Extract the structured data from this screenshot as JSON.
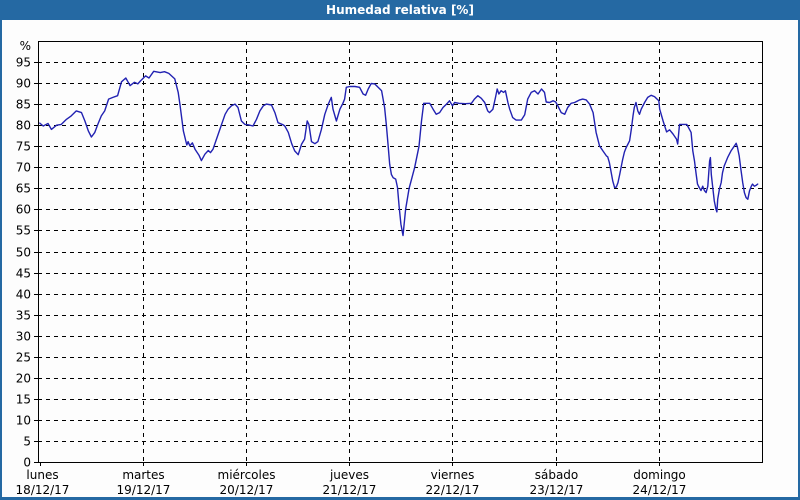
{
  "window": {
    "title": "Humedad relativa [%]"
  },
  "colors": {
    "titlebar_bg": "#2569a3",
    "frame_border": "#2569a3",
    "plot_bg": "#fdfdfd",
    "grid": "#000000",
    "axis": "#000000",
    "line": "#2222b2",
    "title_text": "#ffffff",
    "label_text": "#000000"
  },
  "chart_data": {
    "type": "line",
    "title": "Humedad relativa [%]",
    "ylabel_unit": "%",
    "ylim": [
      0,
      100
    ],
    "ytick_step": 5,
    "ytick_labels": [
      "0",
      "5",
      "10",
      "15",
      "20",
      "25",
      "30",
      "35",
      "40",
      "45",
      "50",
      "55",
      "60",
      "65",
      "70",
      "75",
      "80",
      "85",
      "90",
      "95"
    ],
    "grid": "dashed",
    "legend": "none",
    "x_axis": {
      "unit": "hours_from_monday_00",
      "range_hours": [
        0,
        168
      ],
      "day_ticks": [
        {
          "weekday": "lunes",
          "date": "18/12/17"
        },
        {
          "weekday": "martes",
          "date": "19/12/17"
        },
        {
          "weekday": "miércoles",
          "date": "20/12/17"
        },
        {
          "weekday": "jueves",
          "date": "21/12/17"
        },
        {
          "weekday": "viernes",
          "date": "22/12/17"
        },
        {
          "weekday": "sábado",
          "date": "23/12/17"
        },
        {
          "weekday": "domingo",
          "date": "24/12/17"
        }
      ]
    },
    "series": [
      {
        "name": "Humedad relativa",
        "points": [
          [
            0,
            80.5
          ],
          [
            0.8,
            79.8
          ],
          [
            1.9,
            80.4
          ],
          [
            2.7,
            79.0
          ],
          [
            3.9,
            80.0
          ],
          [
            5,
            80.2
          ],
          [
            6.2,
            81.4
          ],
          [
            7.3,
            82.2
          ],
          [
            8.5,
            83.4
          ],
          [
            9.7,
            83.0
          ],
          [
            10.5,
            81.0
          ],
          [
            11.3,
            78.6
          ],
          [
            12,
            77.2
          ],
          [
            12.8,
            78.3
          ],
          [
            13.5,
            80.2
          ],
          [
            14.3,
            82.2
          ],
          [
            15.1,
            83.4
          ],
          [
            16,
            86.2
          ],
          [
            17,
            86.6
          ],
          [
            18.1,
            87.0
          ],
          [
            19,
            90.3
          ],
          [
            20,
            91.2
          ],
          [
            21,
            89.4
          ],
          [
            22,
            90.2
          ],
          [
            22.8,
            89.8
          ],
          [
            23.4,
            90.5
          ],
          [
            24.6,
            91.7
          ],
          [
            25.4,
            91.2
          ],
          [
            26.5,
            92.8
          ],
          [
            28,
            92.5
          ],
          [
            29,
            92.7
          ],
          [
            30,
            92.3
          ],
          [
            31.4,
            91.0
          ],
          [
            32.2,
            87.8
          ],
          [
            32.6,
            85.0
          ],
          [
            33.4,
            78.6
          ],
          [
            34.2,
            75.3
          ],
          [
            34.5,
            76.1
          ],
          [
            34.9,
            75.1
          ],
          [
            35.5,
            75.8
          ],
          [
            36.1,
            74.3
          ],
          [
            37,
            72.9
          ],
          [
            37.6,
            71.6
          ],
          [
            38.4,
            73.1
          ],
          [
            39.2,
            74.0
          ],
          [
            39.7,
            73.5
          ],
          [
            40.3,
            74.3
          ],
          [
            41.1,
            76.7
          ],
          [
            42.3,
            80.2
          ],
          [
            43.1,
            82.6
          ],
          [
            43.8,
            83.8
          ],
          [
            44.6,
            84.6
          ],
          [
            45.4,
            85.0
          ],
          [
            46.1,
            84.2
          ],
          [
            46.9,
            81.0
          ],
          [
            47.7,
            80.2
          ],
          [
            48.5,
            80.1
          ],
          [
            49.6,
            79.8
          ],
          [
            50.4,
            81.4
          ],
          [
            51.2,
            83.4
          ],
          [
            52,
            84.6
          ],
          [
            52.7,
            85.0
          ],
          [
            53.9,
            84.8
          ],
          [
            54.7,
            83.0
          ],
          [
            55.4,
            80.6
          ],
          [
            56.6,
            80.1
          ],
          [
            57,
            79.8
          ],
          [
            57.8,
            78.3
          ],
          [
            58.6,
            75.6
          ],
          [
            59.3,
            73.9
          ],
          [
            60.1,
            73.0
          ],
          [
            60.9,
            75.5
          ],
          [
            61.6,
            76.7
          ],
          [
            62.2,
            81.0
          ],
          [
            62.6,
            80.2
          ],
          [
            63.2,
            76.1
          ],
          [
            64,
            75.6
          ],
          [
            64.7,
            76.1
          ],
          [
            65.5,
            79.0
          ],
          [
            66.3,
            82.6
          ],
          [
            67.1,
            85.0
          ],
          [
            67.8,
            86.6
          ],
          [
            68.2,
            83.8
          ],
          [
            69,
            81.0
          ],
          [
            69.8,
            83.8
          ],
          [
            70.5,
            85.2
          ],
          [
            70.9,
            86.2
          ],
          [
            71.3,
            89.0
          ],
          [
            72.1,
            89.2
          ],
          [
            73.3,
            89.2
          ],
          [
            74.4,
            89.0
          ],
          [
            75.2,
            87.4
          ],
          [
            75.8,
            87.1
          ],
          [
            76.4,
            88.6
          ],
          [
            77.1,
            89.9
          ],
          [
            77.9,
            89.8
          ],
          [
            78.7,
            89.0
          ],
          [
            79.5,
            88.2
          ],
          [
            80.2,
            84.2
          ],
          [
            80.6,
            80.2
          ],
          [
            81,
            75.5
          ],
          [
            81.4,
            70.7
          ],
          [
            81.8,
            68.3
          ],
          [
            82.2,
            67.5
          ],
          [
            82.8,
            67.2
          ],
          [
            83.2,
            65.2
          ],
          [
            83.6,
            60.5
          ],
          [
            84,
            56.5
          ],
          [
            84.5,
            53.8
          ],
          [
            85.1,
            60.0
          ],
          [
            85.9,
            65.0
          ],
          [
            87.2,
            70.0
          ],
          [
            88.2,
            75.0
          ],
          [
            88.8,
            81.0
          ],
          [
            89.3,
            85.2
          ],
          [
            90.7,
            85.2
          ],
          [
            91.5,
            83.8
          ],
          [
            92.2,
            82.6
          ],
          [
            93,
            83.0
          ],
          [
            93.8,
            84.2
          ],
          [
            94.6,
            85.0
          ],
          [
            95.3,
            85.8
          ],
          [
            96,
            84.6
          ],
          [
            96.5,
            85.4
          ],
          [
            97.5,
            85.2
          ],
          [
            99,
            85.1
          ],
          [
            100.4,
            85.2
          ],
          [
            101.1,
            86.2
          ],
          [
            101.9,
            87.0
          ],
          [
            102.7,
            86.4
          ],
          [
            103.5,
            85.4
          ],
          [
            104.2,
            83.4
          ],
          [
            104.6,
            83.0
          ],
          [
            105.4,
            83.8
          ],
          [
            106,
            86.6
          ],
          [
            106.4,
            88.6
          ],
          [
            106.8,
            87.4
          ],
          [
            107.3,
            88.2
          ],
          [
            107.9,
            87.8
          ],
          [
            108.3,
            88.2
          ],
          [
            108.9,
            85.4
          ],
          [
            109.3,
            83.8
          ],
          [
            110,
            81.8
          ],
          [
            110.8,
            81.2
          ],
          [
            112,
            81.2
          ],
          [
            112.8,
            82.5
          ],
          [
            113.5,
            86.2
          ],
          [
            114.3,
            87.8
          ],
          [
            115.1,
            88.2
          ],
          [
            115.9,
            87.4
          ],
          [
            116.7,
            88.6
          ],
          [
            117.4,
            87.8
          ],
          [
            117.8,
            85.5
          ],
          [
            118.6,
            85.4
          ],
          [
            119.4,
            85.8
          ],
          [
            120,
            85.5
          ],
          [
            120.5,
            84.6
          ],
          [
            121.3,
            83.0
          ],
          [
            122.1,
            82.6
          ],
          [
            122.8,
            84.2
          ],
          [
            123.6,
            85.2
          ],
          [
            124.4,
            85.4
          ],
          [
            125.6,
            86.0
          ],
          [
            126.3,
            86.2
          ],
          [
            127.1,
            86.0
          ],
          [
            127.9,
            85.0
          ],
          [
            128.7,
            83.0
          ],
          [
            129.4,
            78.3
          ],
          [
            130.2,
            75.1
          ],
          [
            131,
            73.9
          ],
          [
            131.8,
            72.7
          ],
          [
            132.1,
            72.5
          ],
          [
            132.5,
            71.1
          ],
          [
            133.3,
            66.7
          ],
          [
            133.7,
            65.2
          ],
          [
            134.1,
            65.3
          ],
          [
            134.5,
            66.4
          ],
          [
            134.9,
            68.3
          ],
          [
            135.6,
            71.9
          ],
          [
            136,
            73.6
          ],
          [
            136.4,
            74.7
          ],
          [
            137.2,
            76.3
          ],
          [
            137.6,
            79.0
          ],
          [
            138,
            82.2
          ],
          [
            138.3,
            84.2
          ],
          [
            138.7,
            85.4
          ],
          [
            139.1,
            83.4
          ],
          [
            139.5,
            82.6
          ],
          [
            139.9,
            83.8
          ],
          [
            140.7,
            85.4
          ],
          [
            141.4,
            86.6
          ],
          [
            142.2,
            87.1
          ],
          [
            143,
            86.8
          ],
          [
            144,
            85.8
          ],
          [
            144.2,
            83.8
          ],
          [
            145,
            81.0
          ],
          [
            145.8,
            78.4
          ],
          [
            146.5,
            78.9
          ],
          [
            147.3,
            77.9
          ],
          [
            148.1,
            76.7
          ],
          [
            148.4,
            75.5
          ],
          [
            148.8,
            80.2
          ],
          [
            150.5,
            80.2
          ],
          [
            151.5,
            78.3
          ],
          [
            151.9,
            73.9
          ],
          [
            152.3,
            71.5
          ],
          [
            152.7,
            68.3
          ],
          [
            153,
            66.0
          ],
          [
            153.4,
            65.2
          ],
          [
            153.8,
            64.5
          ],
          [
            154.2,
            65.5
          ],
          [
            154.6,
            64.5
          ],
          [
            155,
            64.0
          ],
          [
            155.4,
            65.5
          ],
          [
            155.8,
            71.5
          ],
          [
            156,
            72.3
          ],
          [
            156.2,
            68.3
          ],
          [
            156.5,
            65.5
          ],
          [
            156.9,
            62.0
          ],
          [
            157.3,
            60.0
          ],
          [
            157.5,
            59.4
          ],
          [
            157.7,
            62.4
          ],
          [
            158.1,
            64.8
          ],
          [
            158.5,
            66.4
          ],
          [
            158.8,
            68.7
          ],
          [
            159.2,
            70.3
          ],
          [
            160,
            72.3
          ],
          [
            160.8,
            73.9
          ],
          [
            161.6,
            75.1
          ],
          [
            162,
            75.7
          ],
          [
            162.3,
            74.7
          ],
          [
            162.7,
            72.7
          ],
          [
            163.1,
            69.5
          ],
          [
            163.5,
            66.4
          ],
          [
            163.9,
            64.0
          ],
          [
            164.3,
            62.8
          ],
          [
            164.7,
            62.4
          ],
          [
            165.1,
            64.4
          ],
          [
            165.5,
            65.5
          ],
          [
            165.8,
            66.0
          ],
          [
            166.2,
            65.5
          ],
          [
            166.6,
            65.7
          ],
          [
            167,
            66.0
          ]
        ]
      }
    ]
  }
}
